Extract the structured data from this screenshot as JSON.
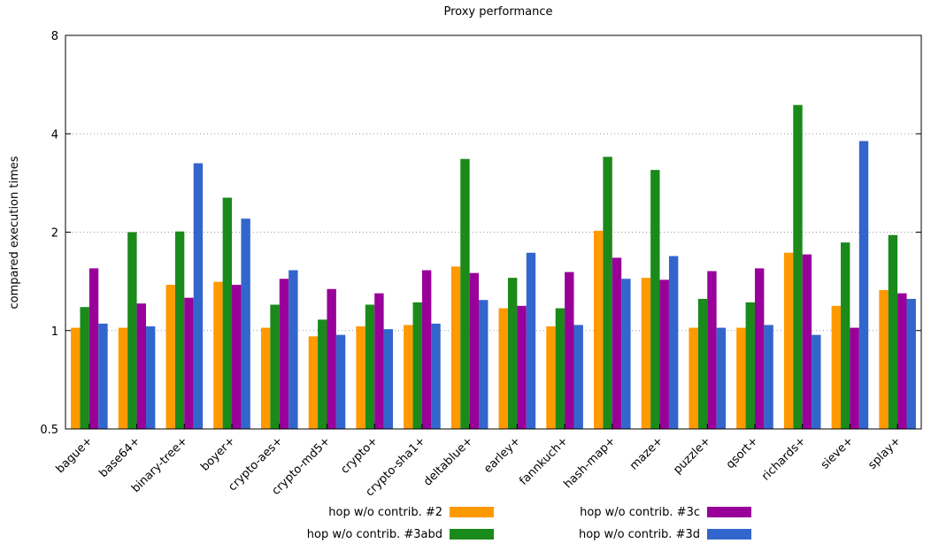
{
  "chart_data": {
    "type": "bar",
    "title": "Proxy performance",
    "xlabel": "",
    "ylabel": "compared execution times",
    "yscale": "log2",
    "ylim": [
      0.5,
      8
    ],
    "yticks": [
      {
        "value": 0.5,
        "label": "0.5"
      },
      {
        "value": 1,
        "label": "1"
      },
      {
        "value": 2,
        "label": "2"
      },
      {
        "value": 4,
        "label": "4"
      },
      {
        "value": 8,
        "label": "8"
      }
    ],
    "grid": "horizontal dotted",
    "legend_position": "bottom",
    "categories": [
      "bague+",
      "base64+",
      "binary-tree+",
      "boyer+",
      "crypto-aes+",
      "crypto-md5+",
      "crypto+",
      "crypto-sha1+",
      "deltablue+",
      "earley+",
      "fannkuch+",
      "hash-map+",
      "maze+",
      "puzzle+",
      "qsort+",
      "richards+",
      "sieve+",
      "splay+"
    ],
    "series": [
      {
        "name": "hop w/o contrib. #2",
        "color": "#ff9900",
        "values": [
          1.02,
          1.02,
          1.38,
          1.41,
          1.02,
          0.96,
          1.03,
          1.04,
          1.57,
          1.17,
          1.03,
          2.02,
          1.45,
          1.02,
          1.02,
          1.73,
          1.19,
          1.33
        ]
      },
      {
        "name": "hop w/o contrib. #3abd",
        "color": "#1a8a1a",
        "values": [
          1.18,
          2.0,
          2.01,
          2.55,
          1.2,
          1.08,
          1.2,
          1.22,
          3.35,
          1.45,
          1.17,
          3.4,
          3.1,
          1.25,
          1.22,
          4.9,
          1.86,
          1.96
        ]
      },
      {
        "name": "hop w/o contrib. #3c",
        "color": "#990099",
        "values": [
          1.55,
          1.21,
          1.26,
          1.38,
          1.44,
          1.34,
          1.3,
          1.53,
          1.5,
          1.19,
          1.51,
          1.67,
          1.43,
          1.52,
          1.55,
          1.71,
          1.02,
          1.3
        ]
      },
      {
        "name": "hop w/o contrib. #3d",
        "color": "#3366cc",
        "values": [
          1.05,
          1.03,
          3.25,
          2.2,
          1.53,
          0.97,
          1.01,
          1.05,
          1.24,
          1.73,
          1.04,
          1.44,
          1.69,
          1.02,
          1.04,
          0.97,
          3.8,
          1.25
        ]
      }
    ]
  }
}
